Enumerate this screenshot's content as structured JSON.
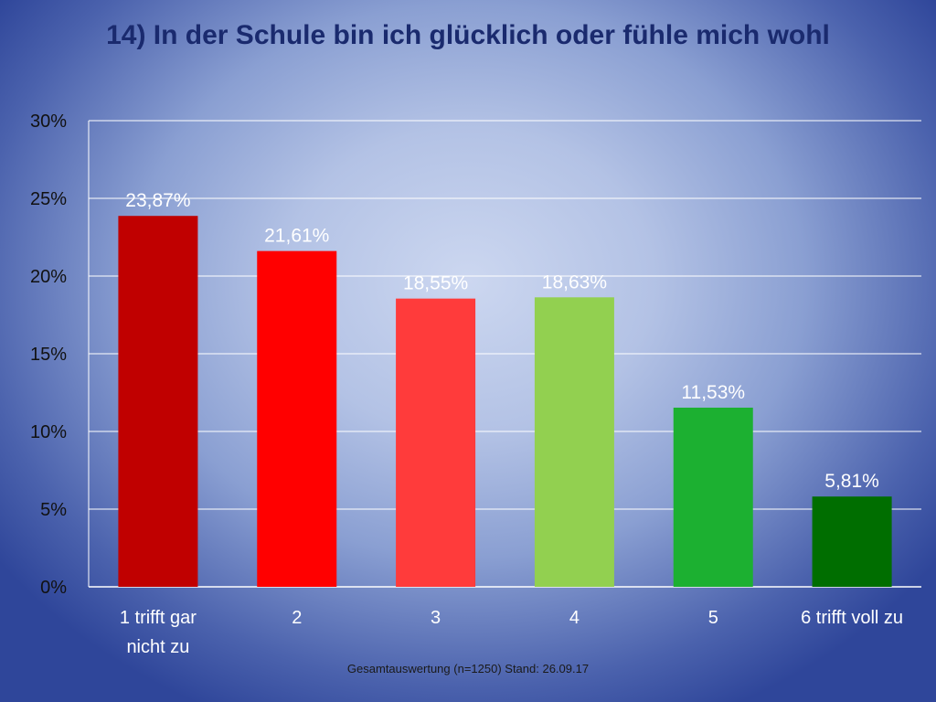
{
  "chart_data": {
    "type": "bar",
    "title": "14) In der Schule bin ich glücklich oder fühle mich wohl",
    "categories": [
      "1 trifft gar nicht zu",
      "2",
      "3",
      "4",
      "5",
      "6 trifft voll zu"
    ],
    "values": [
      23.87,
      21.61,
      18.55,
      18.63,
      11.53,
      5.81
    ],
    "data_labels": [
      "23,87%",
      "21,61%",
      "18,55%",
      "18,63%",
      "11,53%",
      "5,81%"
    ],
    "colors": [
      "#c00000",
      "#ff0000",
      "#ff3b3b",
      "#92d050",
      "#1cb031",
      "#006e00"
    ],
    "y_ticks": [
      "0%",
      "5%",
      "10%",
      "15%",
      "20%",
      "25%",
      "30%"
    ],
    "ylim": [
      0,
      30
    ],
    "y_step": 5,
    "grid": true,
    "xlabel": "",
    "ylabel": "",
    "footnote": "Gesamtauswertung (n=1250) Stand: 26.09.17"
  }
}
